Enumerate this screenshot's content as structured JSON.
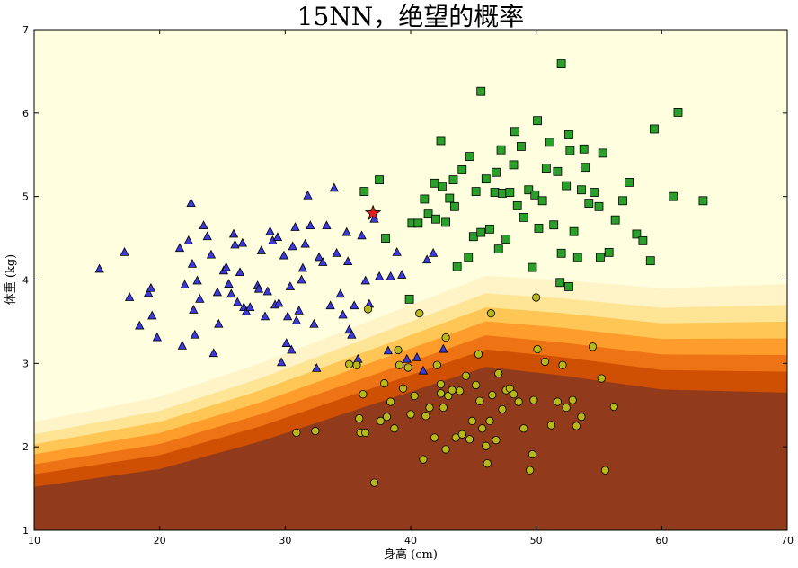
{
  "chart_data": {
    "type": "scatter",
    "title": "15NN，绝望的概率",
    "xlabel": "身高 (cm)",
    "ylabel": "体重 (kg)",
    "xlim": [
      10,
      70
    ],
    "ylim": [
      1,
      7
    ],
    "xticks": [
      10,
      20,
      30,
      40,
      50,
      60,
      70
    ],
    "yticks": [
      1,
      2,
      3,
      4,
      5,
      6,
      7
    ],
    "grid": false,
    "background": {
      "colormap": "YlOrBr",
      "colors": [
        "#ffffe0",
        "#fff3c4",
        "#fee391",
        "#fec44f",
        "#fe9929",
        "#ec7014",
        "#cc4c02",
        "#8c3a1e"
      ],
      "boundary": [
        [
          10,
          2.3
        ],
        [
          20,
          2.6
        ],
        [
          28,
          3.0
        ],
        [
          34,
          3.35
        ],
        [
          40,
          3.7
        ],
        [
          46,
          4.05
        ],
        [
          52,
          4.0
        ],
        [
          60,
          3.9
        ],
        [
          70,
          3.95
        ]
      ]
    },
    "series": [
      {
        "marker": "triangle",
        "color": "#3b3bdc",
        "points": [
          [
            15.2,
            4.13
          ],
          [
            17.2,
            4.33
          ],
          [
            17.6,
            3.79
          ],
          [
            18.4,
            3.45
          ],
          [
            19.1,
            3.84
          ],
          [
            19.3,
            3.9
          ],
          [
            19.4,
            3.57
          ],
          [
            19.8,
            3.31
          ],
          [
            21.6,
            4.38
          ],
          [
            21.8,
            3.21
          ],
          [
            22.0,
            3.94
          ],
          [
            22.3,
            4.47
          ],
          [
            22.5,
            4.92
          ],
          [
            22.6,
            4.19
          ],
          [
            22.7,
            3.64
          ],
          [
            22.8,
            3.34
          ],
          [
            23.0,
            3.99
          ],
          [
            23.2,
            3.77
          ],
          [
            23.5,
            4.65
          ],
          [
            23.8,
            4.52
          ],
          [
            24.1,
            4.3
          ],
          [
            24.3,
            3.12
          ],
          [
            24.6,
            3.85
          ],
          [
            24.7,
            3.47
          ],
          [
            25.1,
            4.11
          ],
          [
            25.3,
            4.15
          ],
          [
            25.5,
            3.95
          ],
          [
            25.7,
            3.83
          ],
          [
            25.9,
            4.55
          ],
          [
            26.0,
            4.42
          ],
          [
            26.2,
            3.73
          ],
          [
            26.4,
            4.09
          ],
          [
            26.6,
            4.44
          ],
          [
            26.7,
            3.67
          ],
          [
            26.9,
            3.62
          ],
          [
            27.2,
            3.67
          ],
          [
            27.8,
            3.93
          ],
          [
            27.9,
            3.89
          ],
          [
            28.1,
            4.35
          ],
          [
            28.4,
            3.56
          ],
          [
            28.6,
            3.86
          ],
          [
            28.8,
            4.58
          ],
          [
            29.0,
            4.47
          ],
          [
            29.2,
            3.7
          ],
          [
            29.4,
            4.51
          ],
          [
            29.5,
            3.72
          ],
          [
            29.7,
            3.01
          ],
          [
            29.9,
            4.29
          ],
          [
            30.1,
            3.24
          ],
          [
            30.2,
            3.56
          ],
          [
            30.4,
            3.92
          ],
          [
            30.5,
            3.16
          ],
          [
            30.6,
            4.4
          ],
          [
            30.8,
            4.63
          ],
          [
            30.9,
            3.51
          ],
          [
            31.1,
            3.63
          ],
          [
            31.3,
            4.0
          ],
          [
            31.4,
            4.14
          ],
          [
            31.6,
            4.43
          ],
          [
            31.8,
            5.01
          ],
          [
            32.0,
            4.65
          ],
          [
            32.3,
            3.47
          ],
          [
            32.5,
            2.94
          ],
          [
            32.7,
            4.27
          ],
          [
            33.0,
            4.21
          ],
          [
            33.3,
            4.65
          ],
          [
            33.6,
            3.69
          ],
          [
            33.9,
            5.1
          ],
          [
            34.1,
            4.32
          ],
          [
            34.4,
            3.83
          ],
          [
            34.6,
            3.58
          ],
          [
            34.9,
            4.57
          ],
          [
            35.0,
            4.22
          ],
          [
            35.1,
            3.4
          ],
          [
            35.3,
            3.34
          ],
          [
            35.5,
            3.69
          ],
          [
            35.8,
            3.05
          ],
          [
            36.1,
            4.53
          ],
          [
            36.4,
            3.99
          ],
          [
            36.7,
            3.71
          ],
          [
            37.1,
            4.73
          ],
          [
            37.5,
            4.04
          ],
          [
            38.2,
            3.15
          ],
          [
            38.4,
            4.04
          ],
          [
            38.9,
            4.33
          ],
          [
            39.3,
            4.06
          ],
          [
            39.7,
            3.05
          ],
          [
            40.5,
            3.07
          ],
          [
            41.0,
            2.91
          ],
          [
            41.3,
            4.24
          ],
          [
            41.8,
            4.32
          ],
          [
            42.6,
            3.17
          ]
        ]
      },
      {
        "marker": "square",
        "color": "#2aa02a",
        "points": [
          [
            36.3,
            5.06
          ],
          [
            37.5,
            5.2
          ],
          [
            38.0,
            4.5
          ],
          [
            39.9,
            3.77
          ],
          [
            40.1,
            4.68
          ],
          [
            40.6,
            4.68
          ],
          [
            41.1,
            4.97
          ],
          [
            41.4,
            4.79
          ],
          [
            41.9,
            5.16
          ],
          [
            42.0,
            4.73
          ],
          [
            42.5,
            5.12
          ],
          [
            42.8,
            4.69
          ],
          [
            43.1,
            4.98
          ],
          [
            43.4,
            5.2
          ],
          [
            43.7,
            4.16
          ],
          [
            44.1,
            5.32
          ],
          [
            44.6,
            4.27
          ],
          [
            45.0,
            4.52
          ],
          [
            45.2,
            5.06
          ],
          [
            45.6,
            4.57
          ],
          [
            46.0,
            5.21
          ],
          [
            46.3,
            4.61
          ],
          [
            46.7,
            5.05
          ],
          [
            47.0,
            4.37
          ],
          [
            47.3,
            5.04
          ],
          [
            47.6,
            4.49
          ],
          [
            47.9,
            5.05
          ],
          [
            48.2,
            5.38
          ],
          [
            48.5,
            4.89
          ],
          [
            48.8,
            5.6
          ],
          [
            49.0,
            4.75
          ],
          [
            49.4,
            5.08
          ],
          [
            49.7,
            4.15
          ],
          [
            49.9,
            5.02
          ],
          [
            50.2,
            4.62
          ],
          [
            50.5,
            4.95
          ],
          [
            50.8,
            5.34
          ],
          [
            51.1,
            5.65
          ],
          [
            51.4,
            4.66
          ],
          [
            51.7,
            5.3
          ],
          [
            52.0,
            4.32
          ],
          [
            52.4,
            5.13
          ],
          [
            52.7,
            5.55
          ],
          [
            53.0,
            4.58
          ],
          [
            53.3,
            4.27
          ],
          [
            53.6,
            5.08
          ],
          [
            53.9,
            5.35
          ],
          [
            54.2,
            4.92
          ],
          [
            54.6,
            5.05
          ],
          [
            55.0,
            4.88
          ],
          [
            55.3,
            5.52
          ],
          [
            55.8,
            4.33
          ],
          [
            56.3,
            4.72
          ],
          [
            56.9,
            4.95
          ],
          [
            57.4,
            5.17
          ],
          [
            58.0,
            4.55
          ],
          [
            58.5,
            4.47
          ],
          [
            59.1,
            4.23
          ],
          [
            59.4,
            5.81
          ],
          [
            60.9,
            5.0
          ],
          [
            61.3,
            6.01
          ],
          [
            63.3,
            4.95
          ],
          [
            52.0,
            6.59
          ],
          [
            45.6,
            6.26
          ],
          [
            42.4,
            5.67
          ],
          [
            44.7,
            5.48
          ],
          [
            47.2,
            5.56
          ],
          [
            48.3,
            5.78
          ],
          [
            50.1,
            5.91
          ],
          [
            52.6,
            5.74
          ],
          [
            53.8,
            5.57
          ],
          [
            43.5,
            4.88
          ],
          [
            46.8,
            5.29
          ],
          [
            51.9,
            3.97
          ],
          [
            52.6,
            3.92
          ],
          [
            55.1,
            4.27
          ]
        ]
      },
      {
        "marker": "circle",
        "color": "#b8b81a",
        "points": [
          [
            30.9,
            2.17
          ],
          [
            32.4,
            2.19
          ],
          [
            35.1,
            2.99
          ],
          [
            35.7,
            2.98
          ],
          [
            35.9,
            2.34
          ],
          [
            36.0,
            2.17
          ],
          [
            36.2,
            2.63
          ],
          [
            36.4,
            2.17
          ],
          [
            36.6,
            3.65
          ],
          [
            37.1,
            1.57
          ],
          [
            37.6,
            2.31
          ],
          [
            37.9,
            2.76
          ],
          [
            38.1,
            2.36
          ],
          [
            38.4,
            2.54
          ],
          [
            38.7,
            2.22
          ],
          [
            39.1,
            2.98
          ],
          [
            39.4,
            2.7
          ],
          [
            39.8,
            2.95
          ],
          [
            40.0,
            2.39
          ],
          [
            40.3,
            2.61
          ],
          [
            40.7,
            3.6
          ],
          [
            41.0,
            1.85
          ],
          [
            41.2,
            2.37
          ],
          [
            41.5,
            2.47
          ],
          [
            41.9,
            2.11
          ],
          [
            42.1,
            2.98
          ],
          [
            42.4,
            2.75
          ],
          [
            42.6,
            2.47
          ],
          [
            42.8,
            1.97
          ],
          [
            43.0,
            2.61
          ],
          [
            43.3,
            2.68
          ],
          [
            43.6,
            2.11
          ],
          [
            43.9,
            2.67
          ],
          [
            44.1,
            2.15
          ],
          [
            44.4,
            2.85
          ],
          [
            44.7,
            2.09
          ],
          [
            44.9,
            2.31
          ],
          [
            45.2,
            2.74
          ],
          [
            45.5,
            2.55
          ],
          [
            45.7,
            2.22
          ],
          [
            46.0,
            2.01
          ],
          [
            46.3,
            2.31
          ],
          [
            46.5,
            2.62
          ],
          [
            46.8,
            2.08
          ],
          [
            47.0,
            2.88
          ],
          [
            47.3,
            2.45
          ],
          [
            47.6,
            2.68
          ],
          [
            47.9,
            2.7
          ],
          [
            48.2,
            2.63
          ],
          [
            48.6,
            2.54
          ],
          [
            49.0,
            2.22
          ],
          [
            49.5,
            1.72
          ],
          [
            49.8,
            2.56
          ],
          [
            50.1,
            3.17
          ],
          [
            50.7,
            3.02
          ],
          [
            51.2,
            2.26
          ],
          [
            52.1,
            2.98
          ],
          [
            52.4,
            2.47
          ],
          [
            52.9,
            2.56
          ],
          [
            53.2,
            2.25
          ],
          [
            53.6,
            2.36
          ],
          [
            54.5,
            3.2
          ],
          [
            55.2,
            2.82
          ],
          [
            55.5,
            1.72
          ],
          [
            56.2,
            2.48
          ],
          [
            42.8,
            3.31
          ],
          [
            45.4,
            3.11
          ],
          [
            46.4,
            3.6
          ],
          [
            50.0,
            3.79
          ],
          [
            51.7,
            2.54
          ],
          [
            49.7,
            1.91
          ],
          [
            46.1,
            1.8
          ],
          [
            39.0,
            3.16
          ],
          [
            42.4,
            2.64
          ]
        ]
      },
      {
        "marker": "star",
        "color": "#e02020",
        "points": [
          [
            37.0,
            4.8
          ]
        ]
      }
    ]
  }
}
